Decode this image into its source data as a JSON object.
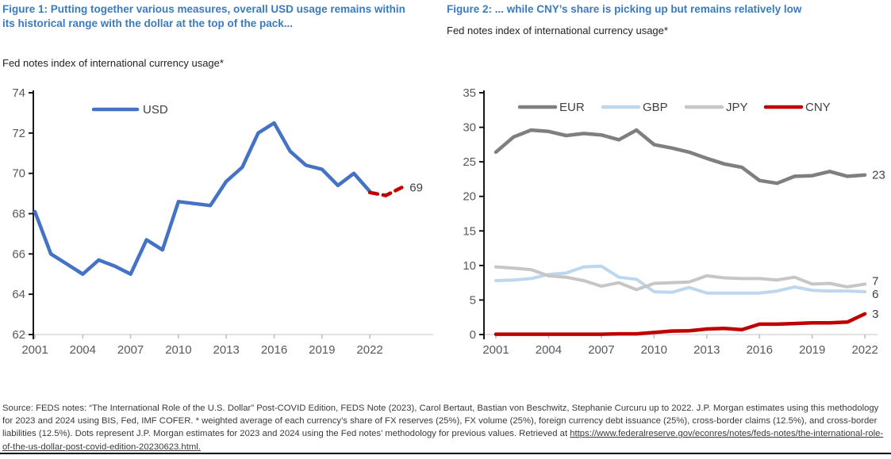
{
  "figure1": {
    "title": "Figure 1: Putting together various measures, overall USD usage remains within its historical range with the dollar at the top of the pack...",
    "subtitle": "Fed notes index of international currency usage*"
  },
  "figure2": {
    "title": "Figure 2: ... while CNY’s share is picking up but remains relatively low",
    "subtitle": "Fed notes index of international currency usage*"
  },
  "footer": {
    "source_text": "Source: FEDS notes: “The International Role of the U.S. Dollar” Post-COVID Edition, FEDS Note (2023), Carol Bertaut, Bastian von Beschwitz, Stephanie Curcuru up to 2022. J.P. Morgan estimates using this methodology for 2023 and 2024 using BIS, Fed, IMF COFER. * weighted average of each currency’s share of FX reserves (25%), FX volume (25%), foreign currency debt issuance (25%), cross-border claims (12.5%), and cross-border liabilities (12.5%). Dots represent J.P. Morgan estimates for 2023 and 2024 using the Fed notes’ methodology for previous values. Retrieved at ",
    "source_url": "https://www.federalreserve.gov/econres/notes/feds-notes/the-international-role-of-the-us-dollar-post-covid-edition-20230623.html."
  },
  "colors": {
    "title_blue": "#3A7BBF",
    "usd_blue": "#4472C4",
    "estimate_red": "#C00000",
    "eur_gray": "#7F7F7F",
    "gbp_light_blue": "#BDD7EE",
    "jpy_light_gray": "#C6C6C6",
    "cny_red": "#C00000",
    "axis_black": "#000000",
    "axis_light_gray": "#D9D9D9",
    "tick_label_gray": "#595959",
    "end_label_gray": "#404040"
  },
  "chart_data": [
    {
      "name": "figure1",
      "type": "line",
      "title": "Fed notes index of international currency usage* (USD)",
      "xlabel": "",
      "ylabel": "",
      "ylim": [
        62,
        74
      ],
      "yticks": [
        62,
        64,
        66,
        68,
        70,
        72,
        74
      ],
      "xticks": [
        2001,
        2004,
        2007,
        2010,
        2013,
        2016,
        2019,
        2022
      ],
      "grid": false,
      "legend_position": "top",
      "x": [
        2001,
        2002,
        2003,
        2004,
        2005,
        2006,
        2007,
        2008,
        2009,
        2010,
        2011,
        2012,
        2013,
        2014,
        2015,
        2016,
        2017,
        2018,
        2019,
        2020,
        2021,
        2022
      ],
      "series": [
        {
          "name": "USD",
          "color": "#4472C4",
          "width": 4.5,
          "values": [
            68.1,
            66.0,
            65.5,
            65.0,
            65.7,
            65.4,
            65.0,
            66.7,
            66.2,
            68.6,
            68.5,
            68.4,
            69.6,
            70.3,
            72.0,
            72.5,
            71.1,
            70.4,
            70.2,
            69.4,
            70.0,
            69.1
          ]
        }
      ],
      "estimate": {
        "name": "J.P. Morgan estimate 2023-2024",
        "color": "#C00000",
        "style": "dashed",
        "width": 4.5,
        "x": [
          2022,
          2023,
          2024
        ],
        "values": [
          69.05,
          68.9,
          69.3
        ],
        "end_label": "69"
      }
    },
    {
      "name": "figure2",
      "type": "line",
      "title": "Fed notes index of international currency usage* (EUR, GBP, JPY, CNY)",
      "xlabel": "",
      "ylabel": "",
      "ylim": [
        0,
        35
      ],
      "yticks": [
        0,
        5,
        10,
        15,
        20,
        25,
        30,
        35
      ],
      "xticks": [
        2001,
        2004,
        2007,
        2010,
        2013,
        2016,
        2019,
        2022
      ],
      "grid": false,
      "legend_position": "top",
      "x": [
        2001,
        2002,
        2003,
        2004,
        2005,
        2006,
        2007,
        2008,
        2009,
        2010,
        2011,
        2012,
        2013,
        2014,
        2015,
        2016,
        2017,
        2018,
        2019,
        2020,
        2021,
        2022
      ],
      "series": [
        {
          "name": "EUR",
          "color": "#7F7F7F",
          "width": 4.5,
          "values": [
            26.4,
            28.6,
            29.6,
            29.4,
            28.8,
            29.1,
            28.9,
            28.2,
            29.6,
            27.5,
            27.0,
            26.4,
            25.5,
            24.7,
            24.2,
            22.3,
            21.9,
            22.9,
            23.0,
            23.6,
            22.9,
            23.1
          ],
          "end_label": "23"
        },
        {
          "name": "GBP",
          "color": "#BDD7EE",
          "width": 4,
          "values": [
            7.8,
            7.9,
            8.1,
            8.7,
            8.9,
            9.8,
            9.9,
            8.3,
            8.0,
            6.2,
            6.1,
            6.8,
            6.0,
            6.0,
            6.0,
            6.0,
            6.3,
            6.9,
            6.4,
            6.3,
            6.3,
            6.2
          ],
          "end_label": "6",
          "label_dy": 3
        },
        {
          "name": "JPY",
          "color": "#C6C6C6",
          "width": 4,
          "values": [
            9.8,
            9.6,
            9.4,
            8.5,
            8.3,
            7.8,
            7.0,
            7.5,
            6.5,
            7.4,
            7.5,
            7.6,
            8.5,
            8.2,
            8.1,
            8.1,
            7.9,
            8.3,
            7.3,
            7.4,
            6.9,
            7.3
          ],
          "end_label": "7",
          "label_dy": -4
        },
        {
          "name": "CNY",
          "color": "#C00000",
          "width": 4.5,
          "values": [
            0.05,
            0.05,
            0.05,
            0.05,
            0.05,
            0.05,
            0.05,
            0.1,
            0.1,
            0.3,
            0.5,
            0.55,
            0.8,
            0.9,
            0.7,
            1.5,
            1.5,
            1.6,
            1.7,
            1.7,
            1.8,
            3.0
          ],
          "end_label": "3"
        }
      ]
    }
  ]
}
